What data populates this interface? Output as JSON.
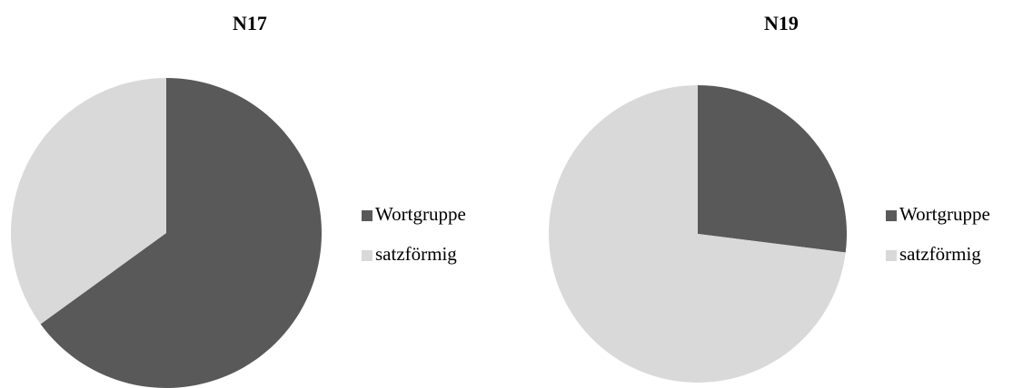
{
  "chart_data": [
    {
      "type": "pie",
      "title": "N17",
      "categories": [
        "Wortgruppe",
        "satzförmig"
      ],
      "values": [
        65,
        35
      ],
      "colors": [
        "#595959",
        "#d9d9d9"
      ]
    },
    {
      "type": "pie",
      "title": "N19",
      "categories": [
        "Wortgruppe",
        "satzförmig"
      ],
      "values": [
        27,
        73
      ],
      "colors": [
        "#595959",
        "#d9d9d9"
      ]
    }
  ]
}
